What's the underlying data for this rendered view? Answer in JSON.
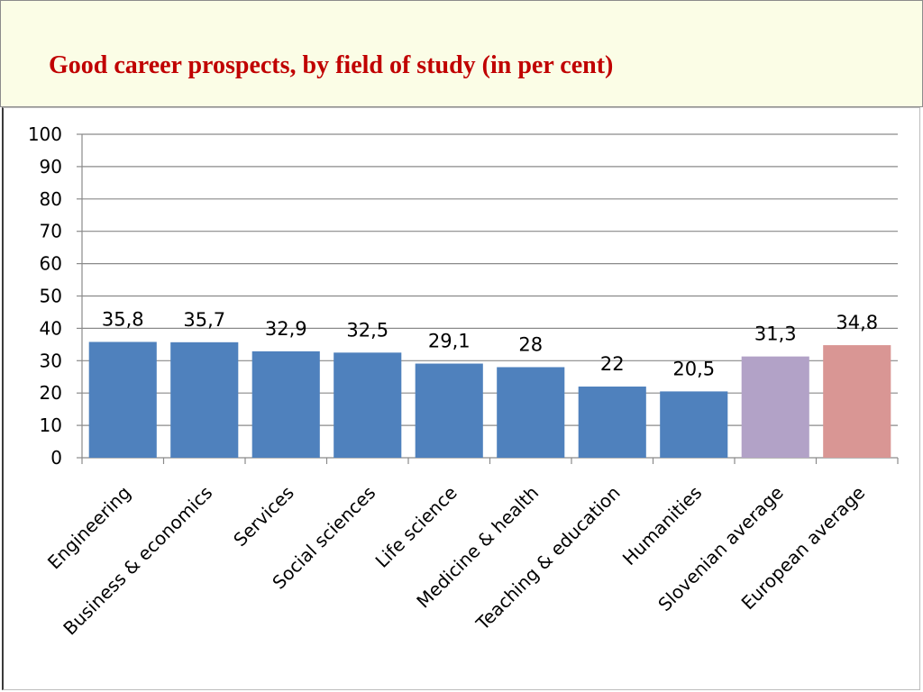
{
  "slide": {
    "title": "Good career prospects, by field of study (in per cent)"
  },
  "chart_data": {
    "type": "bar",
    "title": "",
    "xlabel": "",
    "ylabel": "",
    "ylim": [
      0,
      100
    ],
    "yticks": [
      "0",
      "10",
      "20",
      "30",
      "40",
      "50",
      "60",
      "70",
      "80",
      "90",
      "100"
    ],
    "grid": true,
    "legend": "none",
    "categories": [
      "Engineering",
      "Business & economics",
      "Services",
      "Social sciences",
      "Life science",
      "Medicine & health",
      "Teaching & education",
      "Humanities",
      "Slovenian average",
      "European average"
    ],
    "values": [
      35.8,
      35.7,
      32.9,
      32.5,
      29.1,
      28,
      22,
      20.5,
      31.3,
      34.8
    ],
    "data_labels": [
      "35,8",
      "35,7",
      "32,9",
      "32,5",
      "29,1",
      "28",
      "22",
      "20,5",
      "31,3",
      "34,8"
    ],
    "colors": [
      "#4f81bd",
      "#4f81bd",
      "#4f81bd",
      "#4f81bd",
      "#4f81bd",
      "#4f81bd",
      "#4f81bd",
      "#4f81bd",
      "#b2a2c7",
      "#d99694"
    ]
  }
}
